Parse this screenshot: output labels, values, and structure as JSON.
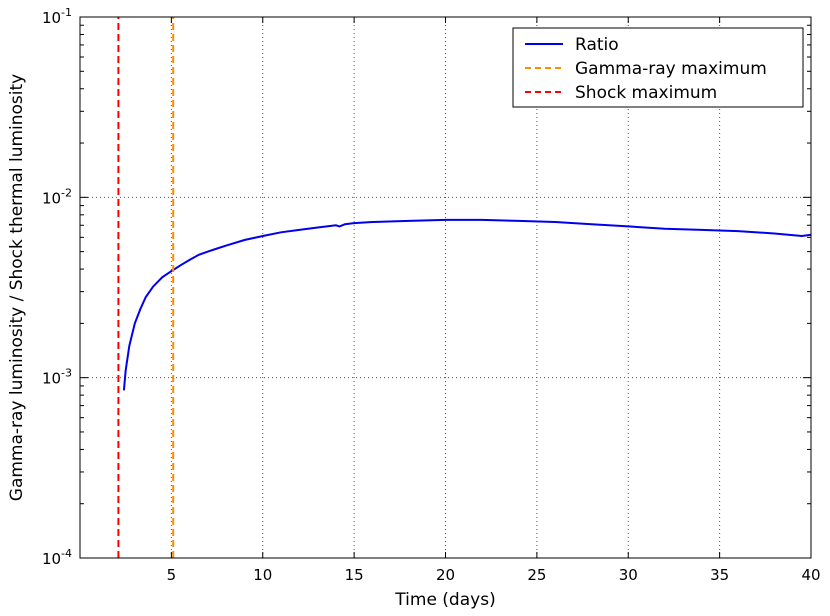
{
  "chart_data": {
    "type": "line",
    "title": "",
    "xlabel": "Time (days)",
    "ylabel": "Gamma-ray luminosity / Shock thermal luminosity",
    "xlim": [
      0,
      40
    ],
    "ylim": [
      0.0001,
      0.1
    ],
    "yscale": "log",
    "grid": true,
    "legend_position": "top-right",
    "x_ticks": [
      {
        "value": 5,
        "label": "5"
      },
      {
        "value": 10,
        "label": "10"
      },
      {
        "value": 15,
        "label": "15"
      },
      {
        "value": 20,
        "label": "20"
      },
      {
        "value": 25,
        "label": "25"
      },
      {
        "value": 30,
        "label": "30"
      },
      {
        "value": 35,
        "label": "35"
      },
      {
        "value": 40,
        "label": "40"
      }
    ],
    "y_ticks": [
      {
        "value": 0.0001,
        "base": "10",
        "exp": "-4"
      },
      {
        "value": 0.001,
        "base": "10",
        "exp": "-3"
      },
      {
        "value": 0.01,
        "base": "10",
        "exp": "-2"
      },
      {
        "value": 0.1,
        "base": "10",
        "exp": "-1"
      }
    ],
    "series": [
      {
        "name": "Ratio",
        "style": "solid",
        "color": "#0000ee",
        "x": [
          2.4,
          2.5,
          2.7,
          3.0,
          3.3,
          3.6,
          4.0,
          4.5,
          5.0,
          5.5,
          6.0,
          6.5,
          7.0,
          7.5,
          8.0,
          9.0,
          10.0,
          11.0,
          12.0,
          13.0,
          14.0,
          14.2,
          14.5,
          15.0,
          16.0,
          18.0,
          20.0,
          22.0,
          24.0,
          26.0,
          28.0,
          30.0,
          32.0,
          34.0,
          36.0,
          38.0,
          39.5,
          40.0
        ],
        "y": [
          0.00085,
          0.0011,
          0.0015,
          0.002,
          0.0024,
          0.0028,
          0.0032,
          0.0036,
          0.0039,
          0.0042,
          0.0045,
          0.0048,
          0.005,
          0.0052,
          0.0054,
          0.0058,
          0.0061,
          0.0064,
          0.0066,
          0.0068,
          0.007,
          0.0069,
          0.0071,
          0.0072,
          0.0073,
          0.0074,
          0.0075,
          0.0075,
          0.0074,
          0.0073,
          0.0071,
          0.0069,
          0.0067,
          0.0066,
          0.0065,
          0.0063,
          0.0061,
          0.0062
        ]
      },
      {
        "name": "Gamma-ray maximum",
        "style": "dashed",
        "color": "#ff8c00",
        "x": [
          5.1,
          5.1
        ],
        "y": [
          0.0001,
          0.1
        ]
      },
      {
        "name": "Shock maximum",
        "style": "dashed",
        "color": "#ff0000",
        "x": [
          2.1,
          2.1
        ],
        "y": [
          0.0001,
          0.1
        ]
      }
    ]
  }
}
